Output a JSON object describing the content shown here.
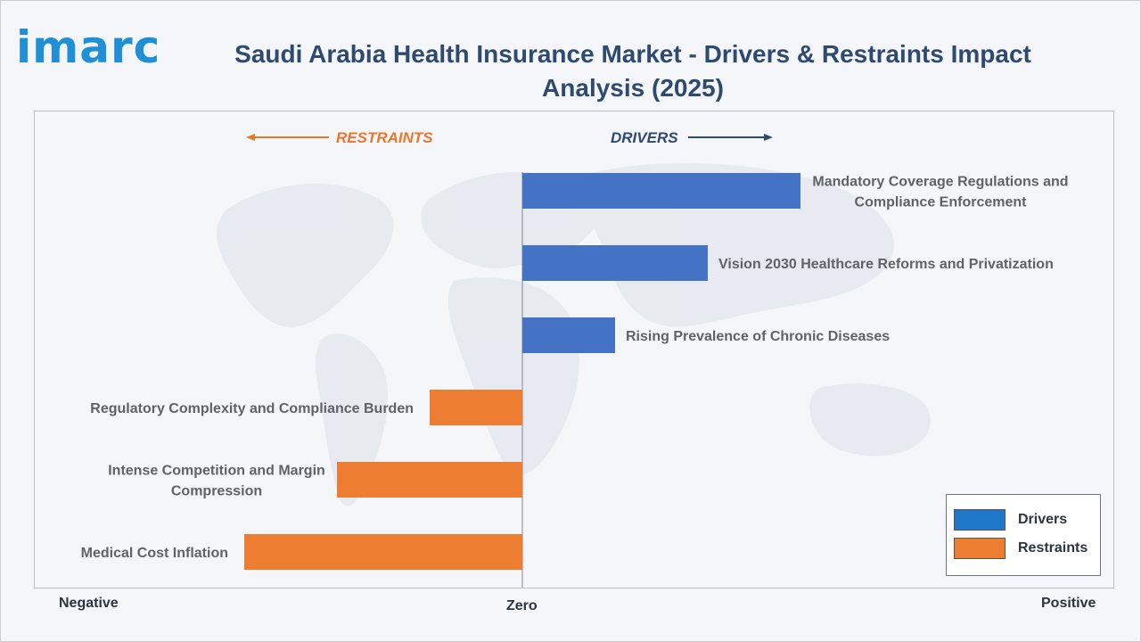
{
  "header": {
    "logo_text": "imarc",
    "title_line1": "Saudi Arabia Health Insurance Market - Drivers & Restraints Impact",
    "title_line2": "Analysis (2025)"
  },
  "chart_data": {
    "type": "bar",
    "orientation": "horizontal",
    "title": "Saudi Arabia Health Insurance Market - Drivers & Restraints Impact Analysis (2025)",
    "direction_labels": {
      "left": "RESTRAINTS",
      "right": "DRIVERS"
    },
    "axis_labels": {
      "left": "Negative",
      "center": "Zero",
      "right": "Positive"
    },
    "value_scale": "relative impact, -3 (negative) to +3 (positive); no numeric ticks printed",
    "xlim": [
      -3,
      3
    ],
    "categories": [
      [
        "Mandatory Coverage Regulations and",
        "Compliance Enforcement"
      ],
      [
        "Vision 2030 Healthcare Reforms and Privatization"
      ],
      [
        "Rising Prevalence of Chronic Diseases"
      ],
      [
        "Regulatory Complexity and Compliance Burden"
      ],
      [
        "Intense Competition and Margin",
        "Compression"
      ],
      [
        "Medical Cost Inflation"
      ]
    ],
    "series": [
      {
        "name": "Drivers",
        "color": "#4472c4",
        "values": [
          3,
          2,
          1,
          0,
          0,
          0
        ]
      },
      {
        "name": "Restraints",
        "color": "#ed7d31",
        "values": [
          0,
          0,
          0,
          -1,
          -2,
          -3
        ]
      }
    ],
    "legend": {
      "position": "bottom-right",
      "items": [
        "Drivers",
        "Restraints"
      ]
    },
    "grid": false
  },
  "colors": {
    "drivers": "#4472c4",
    "restraints": "#ed7d31",
    "drivers_label": "#2f4a70",
    "restraints_label": "#e8762d",
    "category_label": "#5f6368"
  },
  "icons": {
    "left_arrow": "arrow-left-icon",
    "right_arrow": "arrow-right-icon",
    "background": "world-map-icon"
  }
}
